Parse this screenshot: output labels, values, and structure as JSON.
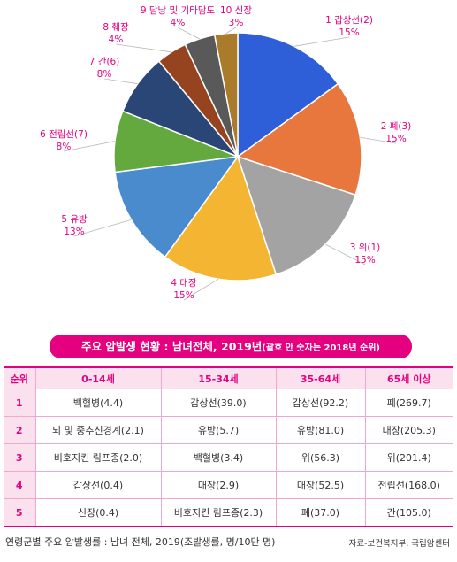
{
  "chart_data": {
    "type": "pie",
    "title": "",
    "slices": [
      {
        "label": "1 갑상선(2)",
        "percent_label": "15%",
        "value": 15,
        "color": "#2e5fd9"
      },
      {
        "label": "2 폐(3)",
        "percent_label": "15%",
        "value": 15,
        "color": "#e8773e"
      },
      {
        "label": "3 위(1)",
        "percent_label": "15%",
        "value": 15,
        "color": "#a3a3a3"
      },
      {
        "label": "4 대장",
        "percent_label": "15%",
        "value": 15,
        "color": "#f4b532"
      },
      {
        "label": "5 유방",
        "percent_label": "13%",
        "value": 13,
        "color": "#4a8bce"
      },
      {
        "label": "6 전립선(7)",
        "percent_label": "8%",
        "value": 8,
        "color": "#63a93d"
      },
      {
        "label": "7 간(6)",
        "percent_label": "8%",
        "value": 8,
        "color": "#2a4677"
      },
      {
        "label": "8 췌장",
        "percent_label": "4%",
        "value": 4,
        "color": "#96441f"
      },
      {
        "label": "9 담낭 및 기타담도",
        "percent_label": "4%",
        "value": 4,
        "color": "#595959"
      },
      {
        "label": "10 신장",
        "percent_label": "3%",
        "value": 3,
        "color": "#a97b2a"
      }
    ],
    "label_color": "#e4007f"
  },
  "banner": {
    "title": "주요 암발생 현황 : 남녀전체, 2019년",
    "note": "(괄호 안 숫자는 2018년 순위)",
    "color": "#e4007f"
  },
  "table": {
    "headers": [
      "순위",
      "0-14세",
      "15-34세",
      "35-64세",
      "65세 이상"
    ],
    "rows": [
      [
        "1",
        "백혈병(4.4)",
        "갑상선(39.0)",
        "갑상선(92.2)",
        "폐(269.7)"
      ],
      [
        "2",
        "뇌 및 중추신경계(2.1)",
        "유방(5.7)",
        "유방(81.0)",
        "대장(205.3)"
      ],
      [
        "3",
        "비호지킨 림프종(2.0)",
        "백혈병(3.4)",
        "위(56.3)",
        "위(201.4)"
      ],
      [
        "4",
        "갑상선(0.4)",
        "대장(2.9)",
        "대장(52.5)",
        "전립선(168.0)"
      ],
      [
        "5",
        "신장(0.4)",
        "비호지킨 림프종(2.3)",
        "폐(37.0)",
        "간(105.0)"
      ]
    ]
  },
  "footer": {
    "caption": "연령군별 주요 암발생률 : 남녀 전체, 2019(조발생률, 명/10만 명)",
    "source": "자료-보건복지부, 국립암센터"
  }
}
